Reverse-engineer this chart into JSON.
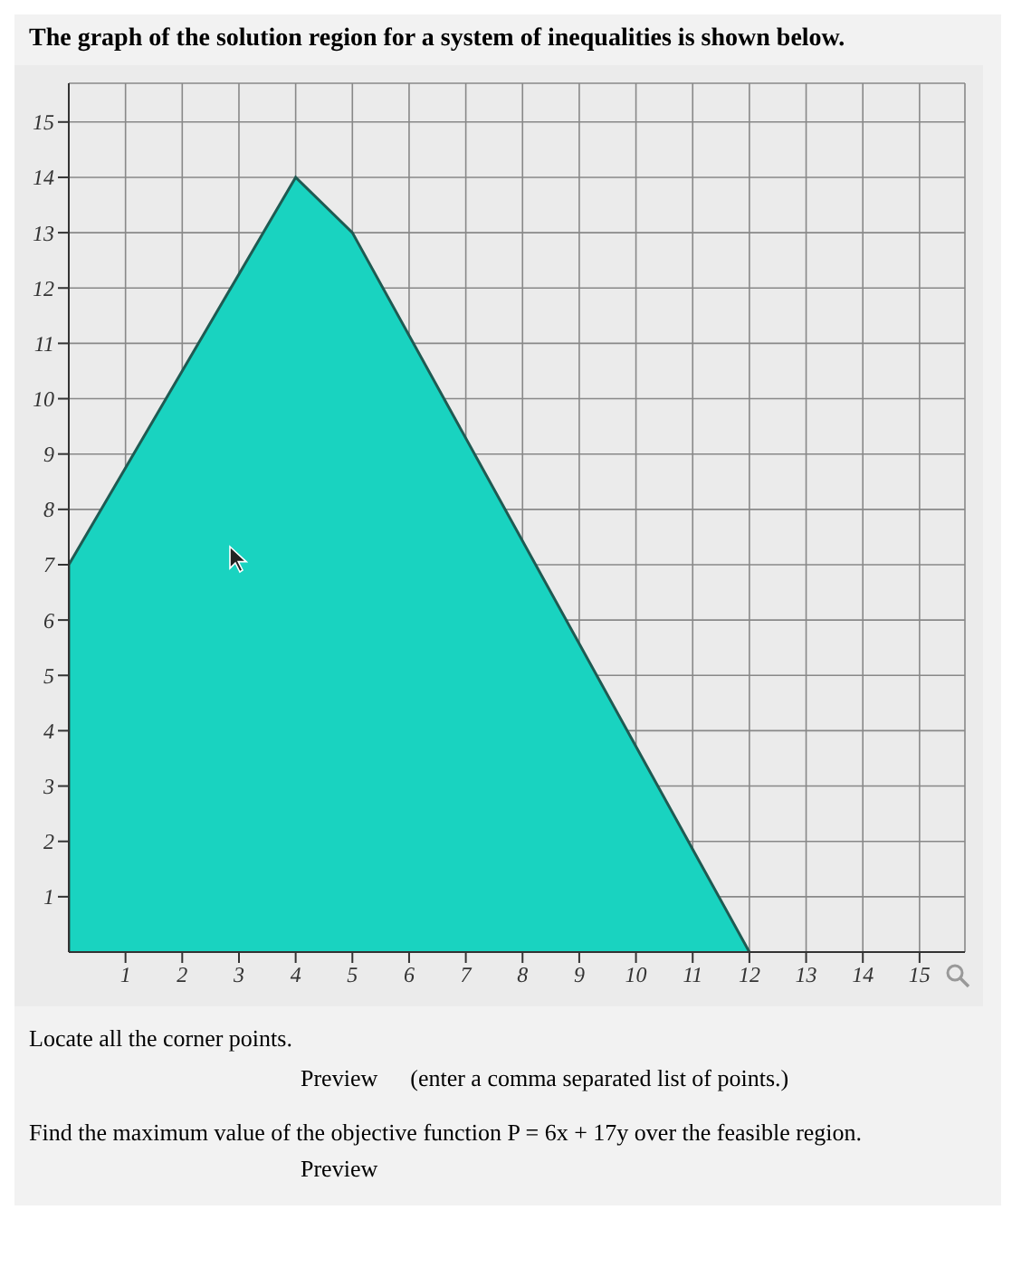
{
  "chart_data": {
    "type": "area",
    "title": "The graph of the solution region for a system of inequalities is shown below.",
    "x": [
      0,
      0,
      4,
      5,
      12
    ],
    "values": [
      0,
      7,
      14,
      13,
      0
    ],
    "color": "#19d3c0",
    "xlim": [
      0,
      15.8
    ],
    "ylim": [
      0,
      15.7
    ],
    "xticks": [
      1,
      2,
      3,
      4,
      5,
      6,
      7,
      8,
      9,
      10,
      11,
      12,
      13,
      14,
      15
    ],
    "yticks": [
      1,
      2,
      3,
      4,
      5,
      6,
      7,
      8,
      9,
      10,
      11,
      12,
      13,
      14,
      15
    ],
    "grid": true,
    "annotations": [
      "Locate all the corner points.",
      "Preview",
      "(enter a comma separated list of points.)",
      "Find the maximum value of the objective function P = 6x + 17y over the feasible region.",
      "Preview"
    ]
  }
}
